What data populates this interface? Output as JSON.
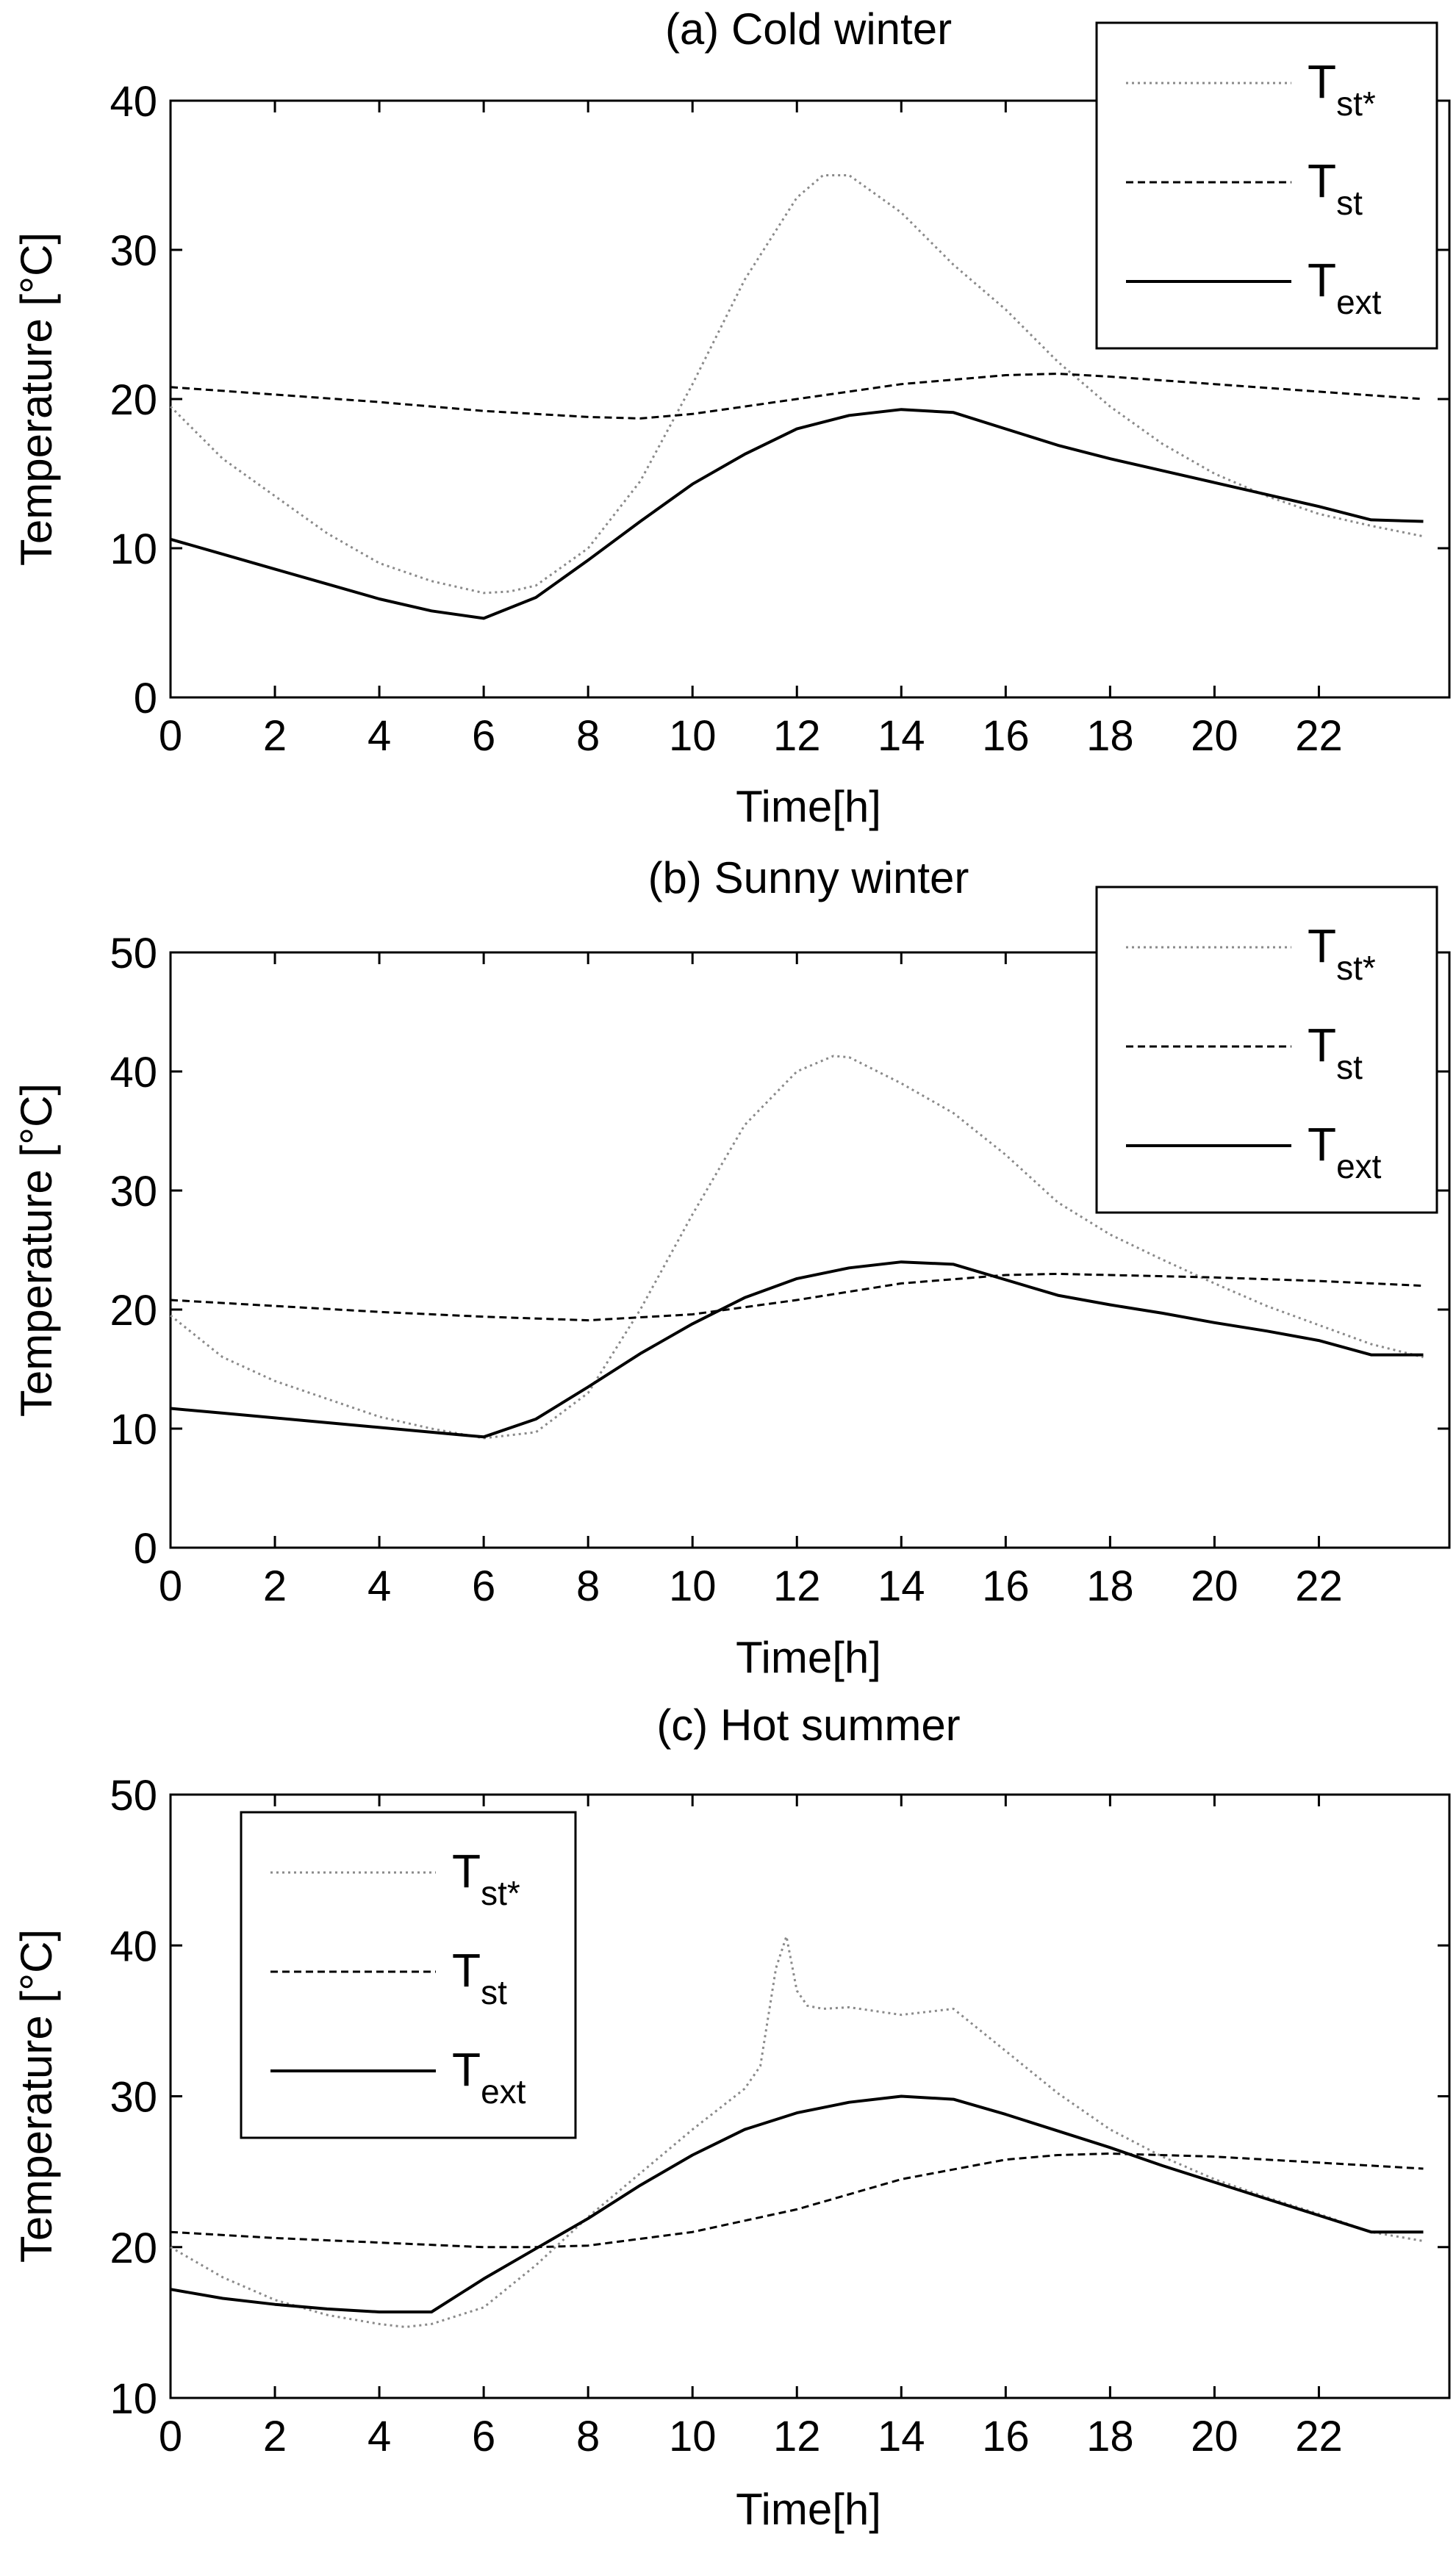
{
  "chart_data": [
    {
      "type": "line",
      "title": "(a) Cold winter",
      "xlabel": "Time[h]",
      "ylabel": "Temperature [°C]",
      "xlim": [
        0,
        24.5
      ],
      "ylim": [
        0,
        40
      ],
      "xticks": [
        0,
        2,
        4,
        6,
        8,
        10,
        12,
        14,
        16,
        18,
        20,
        22
      ],
      "yticks": [
        0,
        10,
        20,
        30,
        40
      ],
      "legend_position": "top-right",
      "series": [
        {
          "name": "Tst*",
          "base": "T",
          "sub": "st*",
          "style": "dotted",
          "x": [
            0,
            1,
            2,
            3,
            4,
            5,
            6,
            6.5,
            7,
            8,
            9,
            10,
            11,
            12,
            12.5,
            13,
            14,
            15,
            16,
            17,
            18,
            19,
            20,
            21,
            22,
            23,
            24
          ],
          "y": [
            19.5,
            16,
            13.5,
            11,
            9,
            7.8,
            7,
            7.1,
            7.5,
            10,
            14.5,
            21,
            28,
            33.5,
            35,
            35,
            32.5,
            29,
            26,
            22.5,
            19.5,
            17,
            15,
            13.5,
            12.3,
            11.5,
            10.8
          ]
        },
        {
          "name": "Tst",
          "base": "T",
          "sub": "st",
          "style": "dashed",
          "x": [
            0,
            2,
            4,
            6,
            8,
            9,
            10,
            12,
            14,
            16,
            17,
            18,
            20,
            22,
            24
          ],
          "y": [
            20.8,
            20.3,
            19.8,
            19.2,
            18.8,
            18.7,
            19,
            20,
            21,
            21.6,
            21.7,
            21.5,
            21,
            20.5,
            20
          ]
        },
        {
          "name": "Text",
          "base": "T",
          "sub": "ext",
          "style": "solid",
          "x": [
            0,
            1,
            2,
            3,
            4,
            5,
            6,
            7,
            8,
            9,
            10,
            11,
            12,
            13,
            14,
            15,
            16,
            17,
            18,
            19,
            20,
            21,
            22,
            23,
            24
          ],
          "y": [
            10.6,
            9.6,
            8.6,
            7.6,
            6.6,
            5.8,
            5.3,
            6.7,
            9.2,
            11.8,
            14.3,
            16.3,
            18,
            18.9,
            19.3,
            19.1,
            18,
            16.9,
            16,
            15.2,
            14.4,
            13.6,
            12.8,
            11.9,
            11.8
          ]
        }
      ]
    },
    {
      "type": "line",
      "title": "(b) Sunny winter",
      "xlabel": "Time[h]",
      "ylabel": "Temperature [°C]",
      "xlim": [
        0,
        24.5
      ],
      "ylim": [
        0,
        50
      ],
      "xticks": [
        0,
        2,
        4,
        6,
        8,
        10,
        12,
        14,
        16,
        18,
        20,
        22
      ],
      "yticks": [
        0,
        10,
        20,
        30,
        40,
        50
      ],
      "legend_position": "top-right",
      "series": [
        {
          "name": "Tst*",
          "base": "T",
          "sub": "st*",
          "style": "dotted",
          "x": [
            0,
            1,
            2,
            3,
            4,
            5,
            6,
            7,
            8,
            9,
            10,
            11,
            12,
            12.7,
            13,
            14,
            15,
            16,
            17,
            18,
            19,
            20,
            21,
            22,
            23,
            24
          ],
          "y": [
            19.5,
            16,
            14,
            12.5,
            11,
            10,
            9.2,
            9.7,
            13,
            20,
            28,
            35.5,
            40,
            41.3,
            41.2,
            39,
            36.5,
            33,
            29,
            26.3,
            24.2,
            22.2,
            20.3,
            18.7,
            17.1,
            16
          ]
        },
        {
          "name": "Tst",
          "base": "T",
          "sub": "st",
          "style": "dashed",
          "x": [
            0,
            2,
            4,
            6,
            8,
            10,
            12,
            14,
            16,
            17,
            18,
            20,
            22,
            24
          ],
          "y": [
            20.8,
            20.3,
            19.8,
            19.4,
            19.1,
            19.6,
            20.8,
            22.2,
            22.9,
            23,
            22.9,
            22.7,
            22.4,
            22
          ]
        },
        {
          "name": "Text",
          "base": "T",
          "sub": "ext",
          "style": "solid",
          "x": [
            0,
            1,
            2,
            3,
            4,
            5,
            6,
            7,
            8,
            9,
            10,
            11,
            12,
            13,
            14,
            15,
            16,
            17,
            18,
            19,
            20,
            21,
            22,
            23,
            24
          ],
          "y": [
            11.7,
            11.3,
            10.9,
            10.5,
            10.1,
            9.7,
            9.3,
            10.8,
            13.5,
            16.3,
            18.8,
            21,
            22.6,
            23.5,
            24,
            23.8,
            22.5,
            21.2,
            20.4,
            19.7,
            18.9,
            18.2,
            17.4,
            16.2,
            16.2
          ]
        }
      ]
    },
    {
      "type": "line",
      "title": "(c) Hot summer",
      "xlabel": "Time[h]",
      "ylabel": "Temperature [°C]",
      "xlim": [
        0,
        24.5
      ],
      "ylim": [
        10,
        50
      ],
      "xticks": [
        0,
        2,
        4,
        6,
        8,
        10,
        12,
        14,
        16,
        18,
        20,
        22
      ],
      "yticks": [
        10,
        20,
        30,
        40,
        50
      ],
      "legend_position": "top-left",
      "series": [
        {
          "name": "Tst*",
          "base": "T",
          "sub": "st*",
          "style": "dotted",
          "x": [
            0,
            1,
            2,
            3,
            4,
            4.5,
            5,
            6,
            7,
            8,
            9,
            10,
            11,
            11.3,
            11.6,
            11.8,
            12,
            12.2,
            12.5,
            13,
            14,
            15,
            16,
            17,
            18,
            19,
            20,
            21,
            22,
            23,
            24
          ],
          "y": [
            20,
            18,
            16.5,
            15.5,
            14.9,
            14.7,
            14.9,
            16,
            18.8,
            22,
            24.9,
            27.8,
            30.5,
            32,
            38.5,
            40.6,
            37,
            36,
            35.8,
            35.9,
            35.4,
            35.8,
            33,
            30.2,
            27.8,
            26,
            24.5,
            23.3,
            22.2,
            21,
            20.4
          ]
        },
        {
          "name": "Tst",
          "base": "T",
          "sub": "st",
          "style": "dashed",
          "x": [
            0,
            2,
            4,
            6,
            7,
            8,
            10,
            12,
            14,
            16,
            17,
            18,
            20,
            22,
            24
          ],
          "y": [
            21,
            20.6,
            20.3,
            20,
            20,
            20.1,
            21,
            22.5,
            24.5,
            25.8,
            26.1,
            26.2,
            26,
            25.6,
            25.2
          ]
        },
        {
          "name": "Text",
          "base": "T",
          "sub": "ext",
          "style": "solid",
          "x": [
            0,
            1,
            2,
            3,
            4,
            5,
            6,
            7,
            8,
            9,
            10,
            11,
            12,
            13,
            14,
            15,
            16,
            17,
            18,
            19,
            20,
            21,
            22,
            23,
            24
          ],
          "y": [
            17.2,
            16.6,
            16.2,
            15.9,
            15.7,
            15.7,
            17.9,
            19.9,
            21.9,
            24.1,
            26.1,
            27.8,
            28.9,
            29.6,
            30,
            29.8,
            28.8,
            27.7,
            26.6,
            25.4,
            24.3,
            23.2,
            22.1,
            21,
            21
          ]
        }
      ]
    }
  ]
}
